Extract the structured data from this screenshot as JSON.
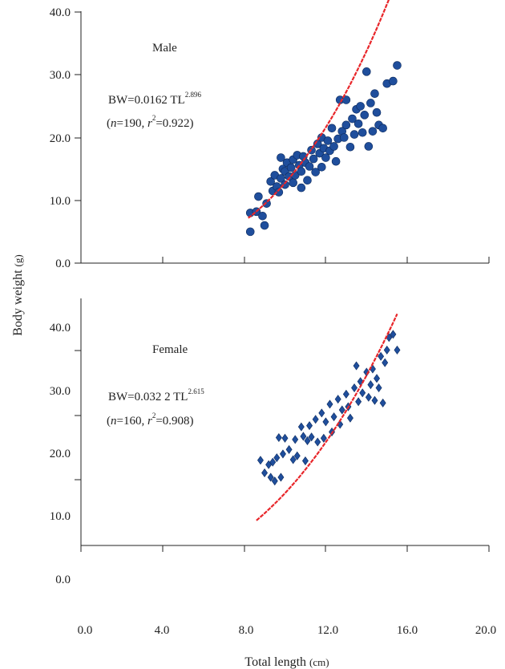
{
  "chart_data": [
    {
      "type": "scatter",
      "panel": "male",
      "label": "Male",
      "equation": {
        "prefix": "BW=0.0162 TL",
        "exponent": "2.896"
      },
      "stats": {
        "open": "(",
        "n_var": "n",
        "n_val": "=190, ",
        "r_var": "r",
        "r_exp": "2",
        "r_val": "=0.922)"
      },
      "xlim": [
        0,
        20
      ],
      "ylim": [
        0,
        40
      ],
      "y_ticks": [
        "0.0",
        "10.0",
        "20.0",
        "30.0",
        "40.0"
      ],
      "marker": "circle",
      "marker_color": "#1f4e9c",
      "fit_color": "#e8262a",
      "fit": {
        "a": 0.0162,
        "b": 2.896,
        "x_from": 8.2,
        "x_to": 15.6
      },
      "points": [
        [
          8.3,
          5.0
        ],
        [
          8.3,
          8.0
        ],
        [
          8.6,
          8.2
        ],
        [
          8.7,
          10.6
        ],
        [
          8.9,
          7.5
        ],
        [
          9.0,
          6.0
        ],
        [
          9.1,
          9.5
        ],
        [
          9.3,
          13.0
        ],
        [
          9.4,
          11.5
        ],
        [
          9.5,
          14.0
        ],
        [
          9.6,
          12.2
        ],
        [
          9.7,
          11.3
        ],
        [
          9.8,
          13.5
        ],
        [
          9.8,
          16.8
        ],
        [
          9.9,
          15.0
        ],
        [
          10.0,
          12.5
        ],
        [
          10.0,
          14.6
        ],
        [
          10.1,
          16.0
        ],
        [
          10.2,
          13.8
        ],
        [
          10.3,
          15.2
        ],
        [
          10.4,
          12.8
        ],
        [
          10.4,
          16.5
        ],
        [
          10.5,
          14.0
        ],
        [
          10.6,
          17.2
        ],
        [
          10.7,
          15.6
        ],
        [
          10.8,
          12.0
        ],
        [
          10.8,
          14.6
        ],
        [
          10.9,
          17.0
        ],
        [
          11.0,
          16.0
        ],
        [
          11.1,
          13.2
        ],
        [
          11.2,
          15.4
        ],
        [
          11.3,
          18.0
        ],
        [
          11.4,
          16.6
        ],
        [
          11.5,
          14.5
        ],
        [
          11.6,
          19.0
        ],
        [
          11.7,
          17.5
        ],
        [
          11.8,
          15.3
        ],
        [
          11.8,
          20.0
        ],
        [
          11.9,
          18.3
        ],
        [
          12.0,
          16.8
        ],
        [
          12.1,
          19.5
        ],
        [
          12.2,
          17.9
        ],
        [
          12.3,
          21.5
        ],
        [
          12.4,
          18.6
        ],
        [
          12.5,
          16.2
        ],
        [
          12.6,
          19.8
        ],
        [
          12.7,
          26.0
        ],
        [
          12.8,
          21.0
        ],
        [
          12.9,
          20.0
        ],
        [
          13.0,
          22.0
        ],
        [
          13.0,
          26.0
        ],
        [
          13.2,
          18.5
        ],
        [
          13.3,
          23.0
        ],
        [
          13.4,
          20.5
        ],
        [
          13.5,
          24.5
        ],
        [
          13.6,
          22.2
        ],
        [
          13.7,
          25.0
        ],
        [
          13.8,
          20.8
        ],
        [
          13.9,
          23.6
        ],
        [
          14.0,
          30.5
        ],
        [
          14.1,
          18.6
        ],
        [
          14.2,
          25.5
        ],
        [
          14.3,
          21.0
        ],
        [
          14.4,
          27.0
        ],
        [
          14.5,
          24.0
        ],
        [
          14.6,
          22.0
        ],
        [
          14.8,
          21.5
        ],
        [
          15.0,
          28.6
        ],
        [
          15.3,
          29.0
        ],
        [
          15.5,
          31.5
        ]
      ]
    },
    {
      "type": "scatter",
      "panel": "female",
      "label": "Female",
      "equation": {
        "prefix": "BW=0.032 2 TL",
        "exponent": "2.615"
      },
      "stats": {
        "open": "(",
        "n_var": "n",
        "n_val": "=160, ",
        "r_var": "r",
        "r_exp": "2",
        "r_val": "=0.908)"
      },
      "xlim": [
        0,
        20
      ],
      "ylim": [
        0,
        40
      ],
      "y_ticks": [
        "0.0",
        "10.0",
        "20.0",
        "30.0",
        "40.0"
      ],
      "marker": "diamond",
      "marker_color": "#1f4e9c",
      "fit_color": "#e8262a",
      "fit": {
        "a": 0.0322,
        "b": 2.615,
        "x_from": 8.6,
        "x_to": 15.5
      },
      "points": [
        [
          8.8,
          18.5
        ],
        [
          9.0,
          16.5
        ],
        [
          9.2,
          17.8
        ],
        [
          9.3,
          15.8
        ],
        [
          9.4,
          18.2
        ],
        [
          9.5,
          15.2
        ],
        [
          9.6,
          18.9
        ],
        [
          9.7,
          22.1
        ],
        [
          9.8,
          15.8
        ],
        [
          9.9,
          19.5
        ],
        [
          10.0,
          22.0
        ],
        [
          10.2,
          20.2
        ],
        [
          10.4,
          18.6
        ],
        [
          10.5,
          21.8
        ],
        [
          10.6,
          19.2
        ],
        [
          10.8,
          23.8
        ],
        [
          10.9,
          22.3
        ],
        [
          11.0,
          18.4
        ],
        [
          11.1,
          21.6
        ],
        [
          11.2,
          24.0
        ],
        [
          11.3,
          22.2
        ],
        [
          11.5,
          25.0
        ],
        [
          11.6,
          21.4
        ],
        [
          11.8,
          26.0
        ],
        [
          11.9,
          22.0
        ],
        [
          12.0,
          24.6
        ],
        [
          12.2,
          27.4
        ],
        [
          12.3,
          23.0
        ],
        [
          12.4,
          25.4
        ],
        [
          12.6,
          28.2
        ],
        [
          12.7,
          24.2
        ],
        [
          12.8,
          26.5
        ],
        [
          13.0,
          29.0
        ],
        [
          13.1,
          27.0
        ],
        [
          13.2,
          25.2
        ],
        [
          13.4,
          30.0
        ],
        [
          13.5,
          33.5
        ],
        [
          13.6,
          27.8
        ],
        [
          13.7,
          31.0
        ],
        [
          13.8,
          29.2
        ],
        [
          14.0,
          32.5
        ],
        [
          14.1,
          28.5
        ],
        [
          14.2,
          30.5
        ],
        [
          14.3,
          33.0
        ],
        [
          14.4,
          28.0
        ],
        [
          14.5,
          31.5
        ],
        [
          14.6,
          30.0
        ],
        [
          14.7,
          35.0
        ],
        [
          14.8,
          27.6
        ],
        [
          14.9,
          34.0
        ],
        [
          15.0,
          36.0
        ],
        [
          15.1,
          38.0
        ],
        [
          15.3,
          38.5
        ],
        [
          15.5,
          36.0
        ]
      ]
    }
  ],
  "shared_axes": {
    "x_ticks": [
      "0.0",
      "4.0",
      "8.0",
      "12.0",
      "16.0",
      "20.0"
    ],
    "xlabel": {
      "main": "Total length ",
      "unit": "(cm)"
    },
    "ylabel": {
      "main": "Body weight ",
      "unit": "(g)"
    }
  }
}
